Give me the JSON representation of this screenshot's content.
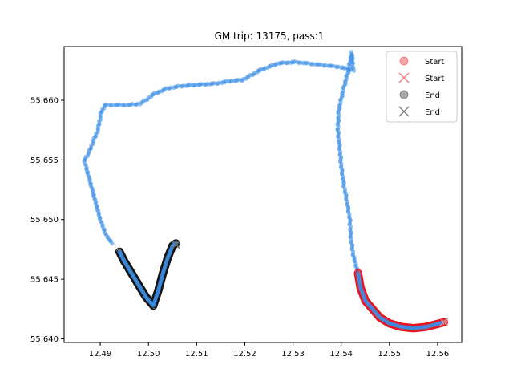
{
  "chart_data": {
    "type": "scatter",
    "title": "GM trip: 13175, pass:1",
    "xlabel": "",
    "ylabel": "",
    "xlim": [
      12.4825,
      12.565
    ],
    "ylim": [
      55.6397,
      55.6645
    ],
    "x_ticks": [
      12.49,
      12.5,
      12.51,
      12.52,
      12.53,
      12.54,
      12.55,
      12.56
    ],
    "x_tick_labels": [
      "12.49",
      "12.50",
      "12.51",
      "12.52",
      "12.53",
      "12.54",
      "12.55",
      "12.56"
    ],
    "y_ticks": [
      55.64,
      55.645,
      55.65,
      55.655,
      55.66
    ],
    "y_tick_labels": [
      "55.640",
      "55.645",
      "55.650",
      "55.655",
      "55.660"
    ],
    "grid": false,
    "legend_position": "top-right",
    "legend": [
      {
        "label": "Start",
        "marker": "circle",
        "color": "#f08080"
      },
      {
        "label": "Start",
        "marker": "x",
        "color": "#f08080"
      },
      {
        "label": "End",
        "marker": "circle",
        "color": "#808080"
      },
      {
        "label": "End",
        "marker": "x",
        "color": "#808080"
      }
    ],
    "colors": {
      "route": "#3a8ee6",
      "start_segment": "#e8141e",
      "end_segment": "#141414",
      "start_marker": "#f08080",
      "end_marker": "#707070"
    },
    "route": [
      [
        12.5435,
        55.6455
      ],
      [
        12.5425,
        55.647
      ],
      [
        12.542,
        55.6485
      ],
      [
        12.5418,
        55.65
      ],
      [
        12.5412,
        55.6515
      ],
      [
        12.5405,
        55.653
      ],
      [
        12.54,
        55.6545
      ],
      [
        12.5397,
        55.656
      ],
      [
        12.5393,
        55.6575
      ],
      [
        12.5395,
        55.6592
      ],
      [
        12.5405,
        55.661
      ],
      [
        12.5415,
        55.6625
      ],
      [
        12.5422,
        55.664
      ],
      [
        12.5425,
        55.6625
      ],
      [
        12.5395,
        55.6628
      ],
      [
        12.535,
        55.663
      ],
      [
        12.5305,
        55.6632
      ],
      [
        12.527,
        55.6631
      ],
      [
        12.525,
        55.6628
      ],
      [
        12.523,
        55.6625
      ],
      [
        12.5218,
        55.6622
      ],
      [
        12.5195,
        55.6617
      ],
      [
        12.517,
        55.6616
      ],
      [
        12.514,
        55.6614
      ],
      [
        12.5105,
        55.6613
      ],
      [
        12.507,
        55.6612
      ],
      [
        12.504,
        55.661
      ],
      [
        12.501,
        55.6605
      ],
      [
        12.4995,
        55.66
      ],
      [
        12.4982,
        55.6597
      ],
      [
        12.496,
        55.6596
      ],
      [
        12.493,
        55.6596
      ],
      [
        12.491,
        55.6596
      ],
      [
        12.4902,
        55.659
      ],
      [
        12.4895,
        55.6575
      ],
      [
        12.4885,
        55.6565
      ],
      [
        12.4875,
        55.6555
      ],
      [
        12.4867,
        55.655
      ],
      [
        12.487,
        55.6545
      ],
      [
        12.488,
        55.653
      ],
      [
        12.489,
        55.6515
      ],
      [
        12.49,
        55.65
      ],
      [
        12.4912,
        55.6487
      ],
      [
        12.4925,
        55.648
      ]
    ],
    "start_segment": [
      [
        12.5435,
        55.6455
      ],
      [
        12.544,
        55.6443
      ],
      [
        12.545,
        55.6432
      ],
      [
        12.5465,
        55.6425
      ],
      [
        12.548,
        55.6418
      ],
      [
        12.55,
        55.6413
      ],
      [
        12.5525,
        55.641
      ],
      [
        12.555,
        55.6409
      ],
      [
        12.5575,
        55.641
      ],
      [
        12.5595,
        55.6412
      ],
      [
        12.5613,
        55.6414
      ]
    ],
    "end_segment": [
      [
        12.494,
        55.6473
      ],
      [
        12.495,
        55.6465
      ],
      [
        12.4965,
        55.6455
      ],
      [
        12.498,
        55.6445
      ],
      [
        12.4995,
        55.6435
      ],
      [
        12.501,
        55.6428
      ],
      [
        12.502,
        55.644
      ],
      [
        12.503,
        55.6455
      ],
      [
        12.504,
        55.6468
      ],
      [
        12.505,
        55.6478
      ],
      [
        12.5057,
        55.648
      ]
    ],
    "start_point": [
      12.5613,
      55.6414
    ],
    "end_point": [
      12.5057,
      55.6479
    ]
  }
}
